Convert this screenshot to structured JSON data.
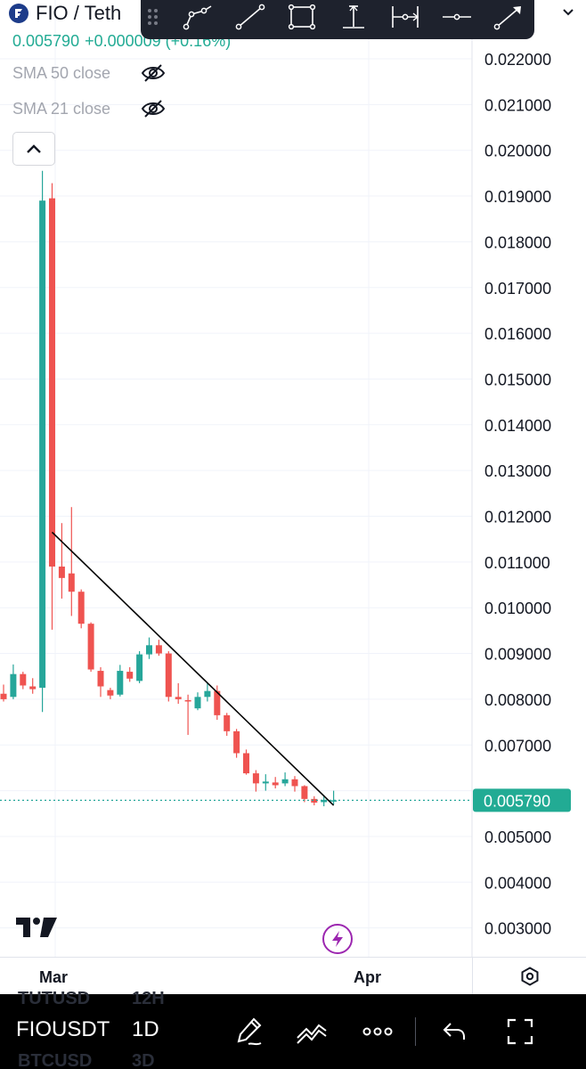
{
  "header": {
    "symbol_title": "FIO / Teth",
    "price": "0.005790",
    "change": "+0.000009 (+0.16%)",
    "price_color": "#22ab94"
  },
  "indicators": [
    {
      "label": "SMA 50 close",
      "icon": "eye-crossed-icon"
    },
    {
      "label": "SMA 21 close",
      "icon": "eye-crossed-icon"
    }
  ],
  "drawing_toolbar": {
    "tools": [
      "path-icon",
      "trend-line-icon",
      "rectangle-icon",
      "vertical-measure-icon",
      "horizontal-measure-icon",
      "horizontal-line-icon",
      "arrow-line-icon"
    ]
  },
  "price_axis": {
    "labels": [
      "0.022000",
      "0.021000",
      "0.020000",
      "0.019000",
      "0.018000",
      "0.017000",
      "0.016000",
      "0.015000",
      "0.014000",
      "0.013000",
      "0.012000",
      "0.011000",
      "0.010000",
      "0.009000",
      "0.008000",
      "0.007000",
      "0.005000",
      "0.004000",
      "0.003000"
    ],
    "current_price_tag": "0.005790",
    "current_tag_color": "#22ab94"
  },
  "time_axis": {
    "labels": [
      "Mar",
      "Apr"
    ]
  },
  "bottom_bar": {
    "symbol": "FIOUSDT",
    "interval": "1D",
    "ghost_symbol_top": "TUTUSD",
    "ghost_interval_top": "12H",
    "ghost_symbol_bottom": "BTCUSD",
    "ghost_interval_bottom": "3D",
    "icons": [
      "draw-pen-icon",
      "indicators-icon",
      "more-icon",
      "undo-icon",
      "fullscreen-icon"
    ]
  },
  "colors": {
    "up": "#26a69a",
    "down": "#ef5350",
    "trendline": "#000000"
  },
  "chart_data": {
    "type": "candlestick",
    "title": "",
    "xlabel": "",
    "ylabel": "",
    "ylim": [
      0.0026,
      0.0227
    ],
    "x_tick_labels": [
      "Mar",
      "Apr"
    ],
    "candles": [
      {
        "o": 0.00812,
        "h": 0.00832,
        "l": 0.00795,
        "c": 0.008
      },
      {
        "o": 0.00805,
        "h": 0.00876,
        "l": 0.008,
        "c": 0.00855
      },
      {
        "o": 0.00855,
        "h": 0.0086,
        "l": 0.00822,
        "c": 0.0083
      },
      {
        "o": 0.00828,
        "h": 0.00846,
        "l": 0.00812,
        "c": 0.00822
      },
      {
        "o": 0.00825,
        "h": 0.01955,
        "l": 0.00772,
        "c": 0.0189
      },
      {
        "o": 0.01895,
        "h": 0.01928,
        "l": 0.00952,
        "c": 0.0109
      },
      {
        "o": 0.0109,
        "h": 0.01185,
        "l": 0.0102,
        "c": 0.01065
      },
      {
        "o": 0.01075,
        "h": 0.0122,
        "l": 0.00982,
        "c": 0.01035
      },
      {
        "o": 0.01035,
        "h": 0.0104,
        "l": 0.00955,
        "c": 0.00965
      },
      {
        "o": 0.00965,
        "h": 0.00968,
        "l": 0.0086,
        "c": 0.00865
      },
      {
        "o": 0.00862,
        "h": 0.0087,
        "l": 0.00805,
        "c": 0.00828
      },
      {
        "o": 0.0082,
        "h": 0.00825,
        "l": 0.008,
        "c": 0.00808
      },
      {
        "o": 0.0081,
        "h": 0.00875,
        "l": 0.00806,
        "c": 0.00862
      },
      {
        "o": 0.0086,
        "h": 0.0087,
        "l": 0.00838,
        "c": 0.00845
      },
      {
        "o": 0.0084,
        "h": 0.00905,
        "l": 0.00835,
        "c": 0.00898
      },
      {
        "o": 0.00898,
        "h": 0.00935,
        "l": 0.00888,
        "c": 0.00918
      },
      {
        "o": 0.00918,
        "h": 0.0093,
        "l": 0.00895,
        "c": 0.009
      },
      {
        "o": 0.009,
        "h": 0.00905,
        "l": 0.00795,
        "c": 0.00805
      },
      {
        "o": 0.00805,
        "h": 0.00835,
        "l": 0.0079,
        "c": 0.008
      },
      {
        "o": 0.00798,
        "h": 0.0081,
        "l": 0.00722,
        "c": 0.00795
      },
      {
        "o": 0.0078,
        "h": 0.00815,
        "l": 0.00776,
        "c": 0.00805
      },
      {
        "o": 0.00805,
        "h": 0.00835,
        "l": 0.00795,
        "c": 0.00818
      },
      {
        "o": 0.00818,
        "h": 0.0083,
        "l": 0.00755,
        "c": 0.00765
      },
      {
        "o": 0.00765,
        "h": 0.0077,
        "l": 0.0072,
        "c": 0.0073
      },
      {
        "o": 0.0073,
        "h": 0.00735,
        "l": 0.00672,
        "c": 0.00682
      },
      {
        "o": 0.00682,
        "h": 0.0069,
        "l": 0.00635,
        "c": 0.00638
      },
      {
        "o": 0.00638,
        "h": 0.00645,
        "l": 0.00598,
        "c": 0.00616
      },
      {
        "o": 0.00616,
        "h": 0.00636,
        "l": 0.006,
        "c": 0.0062
      },
      {
        "o": 0.00618,
        "h": 0.0063,
        "l": 0.00605,
        "c": 0.00612
      },
      {
        "o": 0.00616,
        "h": 0.0064,
        "l": 0.0061,
        "c": 0.00625
      },
      {
        "o": 0.00625,
        "h": 0.00632,
        "l": 0.00598,
        "c": 0.0061
      },
      {
        "o": 0.0061,
        "h": 0.00612,
        "l": 0.00575,
        "c": 0.00582
      },
      {
        "o": 0.00582,
        "h": 0.00588,
        "l": 0.00568,
        "c": 0.00574
      },
      {
        "o": 0.00575,
        "h": 0.0059,
        "l": 0.00566,
        "c": 0.0058
      },
      {
        "o": 0.00578,
        "h": 0.006,
        "l": 0.0057,
        "c": 0.00579
      }
    ],
    "trend_line": {
      "from_index": 5,
      "from_value": 0.01165,
      "to_index": 34,
      "to_value": 0.00568
    },
    "current_price": 0.00579
  }
}
